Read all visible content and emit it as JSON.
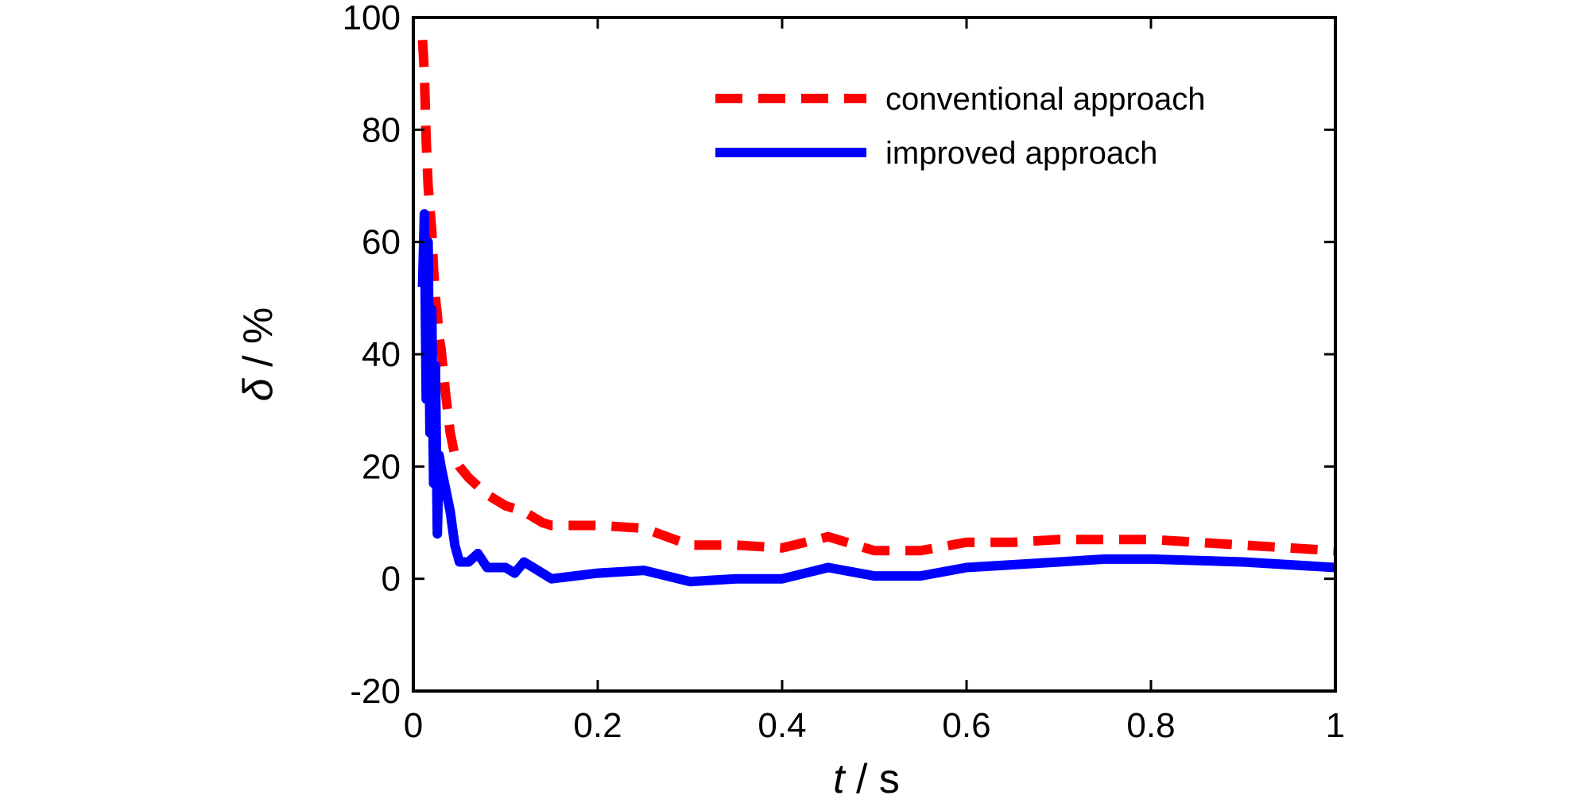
{
  "chart_data": {
    "type": "line",
    "title": "",
    "xlabel": {
      "var": "t",
      "unit": " / s"
    },
    "ylabel": {
      "var": "δ",
      "unit": " / %"
    },
    "xlim": [
      0,
      1
    ],
    "ylim": [
      -20,
      100
    ],
    "xticks": [
      0,
      0.2,
      0.4,
      0.6,
      0.8,
      1
    ],
    "xtick_labels": [
      "0",
      "0.2",
      "0.4",
      "0.6",
      "0.8",
      "1"
    ],
    "yticks": [
      -20,
      0,
      20,
      40,
      60,
      80,
      100
    ],
    "ytick_labels": [
      "-20",
      "0",
      "20",
      "40",
      "60",
      "80",
      "100"
    ],
    "grid": false,
    "legend_position": "top-right",
    "series": [
      {
        "name": "conventional approach",
        "color": "#ff0000",
        "style": "dashed",
        "x": [
          0.01,
          0.012,
          0.014,
          0.016,
          0.018,
          0.02,
          0.022,
          0.024,
          0.026,
          0.028,
          0.03,
          0.035,
          0.04,
          0.045,
          0.05,
          0.06,
          0.08,
          0.1,
          0.11,
          0.12,
          0.14,
          0.15,
          0.2,
          0.25,
          0.3,
          0.35,
          0.4,
          0.45,
          0.5,
          0.55,
          0.6,
          0.65,
          0.7,
          0.75,
          0.8,
          0.9,
          1.0
        ],
        "y": [
          96,
          90,
          78,
          70,
          66,
          62,
          55,
          50,
          47,
          43,
          41,
          33,
          26,
          22,
          20,
          18,
          15,
          13,
          12.5,
          12,
          10,
          9.5,
          9.5,
          9,
          6,
          6,
          5.5,
          7.5,
          5,
          5,
          6.5,
          6.5,
          7,
          7,
          7,
          6,
          5
        ]
      },
      {
        "name": "improved approach",
        "color": "#0000ff",
        "style": "solid",
        "x": [
          0.01,
          0.012,
          0.014,
          0.016,
          0.018,
          0.02,
          0.022,
          0.024,
          0.026,
          0.028,
          0.03,
          0.035,
          0.04,
          0.045,
          0.05,
          0.06,
          0.07,
          0.08,
          0.09,
          0.1,
          0.11,
          0.12,
          0.13,
          0.14,
          0.15,
          0.2,
          0.25,
          0.3,
          0.35,
          0.4,
          0.45,
          0.5,
          0.55,
          0.6,
          0.65,
          0.7,
          0.75,
          0.8,
          0.9,
          1.0
        ],
        "y": [
          52,
          65,
          32,
          60,
          26,
          48,
          17,
          38,
          8,
          22,
          20,
          16,
          12,
          6,
          3,
          3,
          4.5,
          2,
          2,
          2,
          1,
          3,
          2,
          1,
          0,
          1,
          1.5,
          -0.5,
          0,
          0,
          2,
          0.5,
          0.5,
          2,
          2.5,
          3,
          3.5,
          3.5,
          3,
          2
        ]
      }
    ]
  }
}
